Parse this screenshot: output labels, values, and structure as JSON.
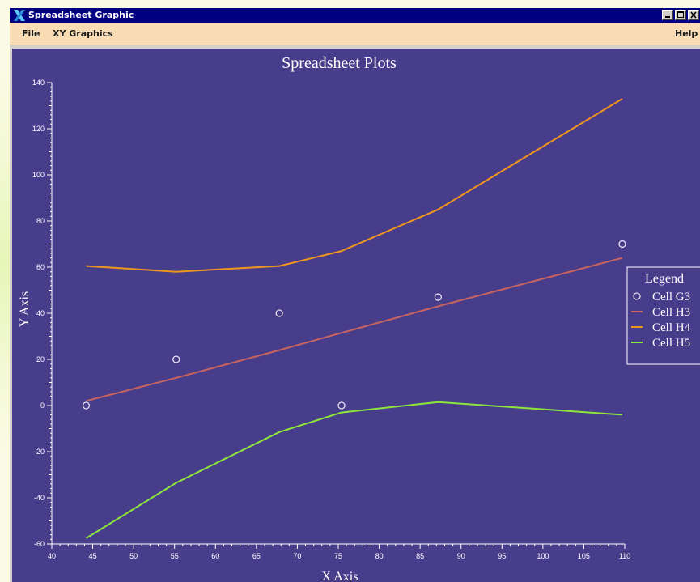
{
  "window": {
    "title": "Spreadsheet Graphic",
    "icon": "x-window-icon",
    "controls": [
      "minimize-icon",
      "maximize-icon",
      "close-icon"
    ]
  },
  "menu": {
    "file": "File",
    "xy_graphics": "XY Graphics",
    "help": "Help"
  },
  "colors": {
    "titlebar": "#000080",
    "menubar": "#f9dcb4",
    "plot_background": "#483d8b",
    "axis_text": "#ffffff"
  },
  "chart_data": {
    "type": "line",
    "title": "Spreadsheet Plots",
    "xlabel": "X Axis",
    "ylabel": "Y Axis",
    "xlim": [
      40,
      110
    ],
    "ylim": [
      -60,
      140
    ],
    "x_ticks": [
      40,
      45,
      50,
      55,
      60,
      65,
      70,
      75,
      80,
      85,
      90,
      95,
      100,
      105,
      110
    ],
    "y_ticks": [
      -60,
      -40,
      -20,
      0,
      20,
      40,
      60,
      80,
      100,
      120,
      140
    ],
    "grid": false,
    "legend": {
      "title": "Legend",
      "placement": "right"
    },
    "series": [
      {
        "name": "Cell G3",
        "style": "marker",
        "color": "#e8e0f0",
        "x": [
          44.2,
          55.2,
          67.8,
          75.4,
          87.2,
          109.7
        ],
        "y": [
          0,
          20,
          40,
          0,
          47,
          70
        ]
      },
      {
        "name": "Cell H3",
        "style": "line",
        "color": "#c8645f",
        "x": [
          44.2,
          55.2,
          67.8,
          75.4,
          87.2,
          109.7
        ],
        "y": [
          2,
          12,
          24,
          31.5,
          43,
          64
        ]
      },
      {
        "name": "Cell H4",
        "style": "line",
        "color": "#f0961e",
        "x": [
          44.2,
          55.2,
          67.8,
          75.4,
          87.2,
          109.7
        ],
        "y": [
          60.5,
          58,
          60.5,
          67,
          85,
          133
        ]
      },
      {
        "name": "Cell H5",
        "style": "line",
        "color": "#8ce63c",
        "x": [
          44.2,
          55.2,
          67.8,
          75.4,
          87.2,
          109.7
        ],
        "y": [
          -57.5,
          -33.5,
          -11.5,
          -3,
          1.5,
          -4
        ]
      }
    ]
  }
}
